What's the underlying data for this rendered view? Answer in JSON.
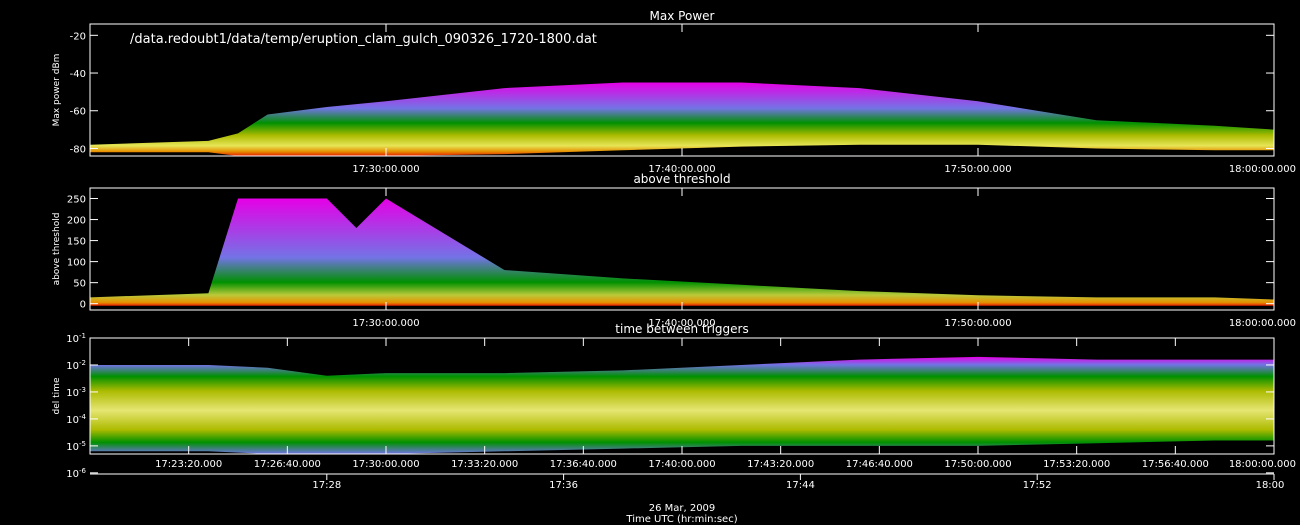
{
  "file_path": "/data.redoubt1/data/temp/eruption_clam_gulch_090326_1720-1800.dat",
  "date_label": "26 Mar, 2009",
  "time_axis_label": "Time UTC (hr:min:sec)",
  "lower_axis_ticks": [
    "17:28",
    "17:36",
    "17:44",
    "17:52",
    "18:00"
  ],
  "colors": {
    "background": "#000000",
    "foreground": "#ffffff",
    "density_scale": [
      "#ff00ff",
      "#8080ff",
      "#00a000",
      "#a0c000",
      "#ffff60",
      "#ffa000",
      "#ff2000"
    ]
  },
  "chart_data": [
    {
      "type": "heatmap",
      "title": "Max Power",
      "ylabel": "Max power dBm",
      "ylim": [
        -84,
        -14
      ],
      "yscale": "linear",
      "y_ticks": [
        "-20",
        "-40",
        "-60",
        "-80"
      ],
      "x_range_utc": [
        "17:20:00",
        "18:00:00"
      ],
      "x_tick_labels": [
        "17:30:00.000",
        "17:40:00.000",
        "17:50:00.000",
        "18:00:00.000"
      ],
      "density_envelope": {
        "x": [
          "17:20",
          "17:24",
          "17:25",
          "17:26",
          "17:28",
          "17:30",
          "17:34",
          "17:38",
          "17:42",
          "17:46",
          "17:50",
          "17:54",
          "17:58",
          "18:00"
        ],
        "upper_y": [
          -78,
          -76,
          -72,
          -62,
          -58,
          -55,
          -48,
          -45,
          -45,
          -48,
          -55,
          -65,
          -68,
          -70
        ],
        "lower_y": [
          -82,
          -82,
          -84,
          -84,
          -84,
          -84,
          -83,
          -81,
          -79,
          -78,
          -78,
          -80,
          -81,
          -81
        ]
      }
    },
    {
      "type": "heatmap",
      "title": "above threshold",
      "ylabel": "above threshold",
      "ylim": [
        -15,
        275
      ],
      "yscale": "linear",
      "y_ticks": [
        "250",
        "200",
        "150",
        "100",
        "50",
        "0"
      ],
      "x_range_utc": [
        "17:20:00",
        "18:00:00"
      ],
      "x_tick_labels": [
        "17:30:00.000",
        "17:40:00.000",
        "17:50:00.000",
        "18:00:00.000"
      ],
      "density_envelope": {
        "x": [
          "17:20",
          "17:24",
          "17:25",
          "17:26",
          "17:27",
          "17:28",
          "17:29",
          "17:30",
          "17:34",
          "17:38",
          "17:42",
          "17:46",
          "17:50",
          "17:54",
          "17:58",
          "18:00"
        ],
        "upper_y": [
          15,
          25,
          250,
          250,
          250,
          250,
          180,
          250,
          80,
          60,
          45,
          30,
          20,
          15,
          15,
          10
        ],
        "lower_y": [
          -5,
          -5,
          -5,
          -5,
          -5,
          -5,
          -5,
          -5,
          -5,
          -5,
          -5,
          -5,
          -5,
          -5,
          -5,
          -5
        ]
      }
    },
    {
      "type": "heatmap",
      "title": "time between triggers",
      "ylabel": "del time",
      "ylim": [
        5e-06,
        0.1
      ],
      "yscale": "log",
      "y_ticks": [
        "10^-1",
        "10^-2",
        "10^-3",
        "10^-4",
        "10^-5",
        "10^-6"
      ],
      "x_range_utc": [
        "17:20:00",
        "18:00:00"
      ],
      "x_tick_labels": [
        "17:23:20.000",
        "17:26:40.000",
        "17:30:00.000",
        "17:33:20.000",
        "17:36:40.000",
        "17:40:00.000",
        "17:43:20.000",
        "17:46:40.000",
        "17:50:00.000",
        "17:53:20.000",
        "17:56:40.000",
        "18:00:00.000"
      ],
      "density_envelope": {
        "x": [
          "17:20",
          "17:24",
          "17:26",
          "17:28",
          "17:30",
          "17:34",
          "17:38",
          "17:42",
          "17:46",
          "17:50",
          "17:54",
          "17:58",
          "18:00"
        ],
        "upper_log10_y": [
          -2,
          -2,
          -2.1,
          -2.4,
          -2.3,
          -2.3,
          -2.2,
          -2,
          -1.8,
          -1.7,
          -1.8,
          -1.8,
          -1.8
        ],
        "lower_log10_y": [
          -5.2,
          -5.2,
          -5.3,
          -5.3,
          -5.3,
          -5.2,
          -5.1,
          -5,
          -5,
          -5,
          -4.9,
          -4.8,
          -4.8
        ]
      }
    }
  ]
}
